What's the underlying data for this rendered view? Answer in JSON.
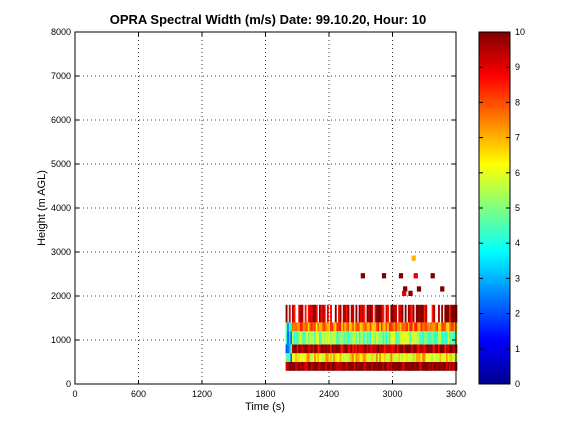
{
  "chart_data": {
    "type": "heatmap",
    "title": "OPRA Spectral Width (m/s)  Date: 99.10.20, Hour: 10",
    "xlabel": "Time (s)",
    "ylabel": "Height (m AGL)",
    "xlim": [
      0,
      3600
    ],
    "ylim": [
      0,
      8000
    ],
    "x_ticks": [
      "0",
      "600",
      "1200",
      "1800",
      "2400",
      "3000",
      "3600"
    ],
    "y_ticks": [
      "0",
      "1000",
      "2000",
      "3000",
      "4000",
      "5000",
      "6000",
      "7000",
      "8000"
    ],
    "grid": true,
    "colormap": "jet",
    "colorbar": {
      "range": [
        0,
        10
      ],
      "ticks": [
        "0",
        "1",
        "2",
        "3",
        "4",
        "5",
        "6",
        "7",
        "8",
        "9",
        "10"
      ]
    },
    "data_extent": {
      "time_start": 1990,
      "time_end": 3600,
      "height_bottom": 300,
      "height_main_top": 1800,
      "height_sparse_top": 2800
    },
    "layers": [
      {
        "height_min": 300,
        "height_max": 500,
        "value": 10
      },
      {
        "height_min": 500,
        "height_max": 700,
        "value": 6.5
      },
      {
        "height_min": 700,
        "height_max": 900,
        "value": 9.5
      },
      {
        "height_min": 900,
        "height_max": 1200,
        "value": 5
      },
      {
        "height_min": 1200,
        "height_max": 1400,
        "value": 7.5
      },
      {
        "height_min": 1400,
        "height_max": 1800,
        "value": 9.5
      }
    ],
    "sparse_cells": [
      {
        "time": 3180,
        "height": 2800,
        "value": 7
      },
      {
        "time": 2700,
        "height": 2400,
        "value": 10
      },
      {
        "time": 2900,
        "height": 2400,
        "value": 10
      },
      {
        "time": 3060,
        "height": 2400,
        "value": 10
      },
      {
        "time": 3200,
        "height": 2400,
        "value": 9
      },
      {
        "time": 3360,
        "height": 2400,
        "value": 10
      },
      {
        "time": 3100,
        "height": 2100,
        "value": 10
      },
      {
        "time": 3230,
        "height": 2100,
        "value": 10
      },
      {
        "time": 3450,
        "height": 2100,
        "value": 10
      },
      {
        "time": 3090,
        "height": 2000,
        "value": 9
      },
      {
        "time": 3150,
        "height": 2000,
        "value": 10
      }
    ]
  }
}
